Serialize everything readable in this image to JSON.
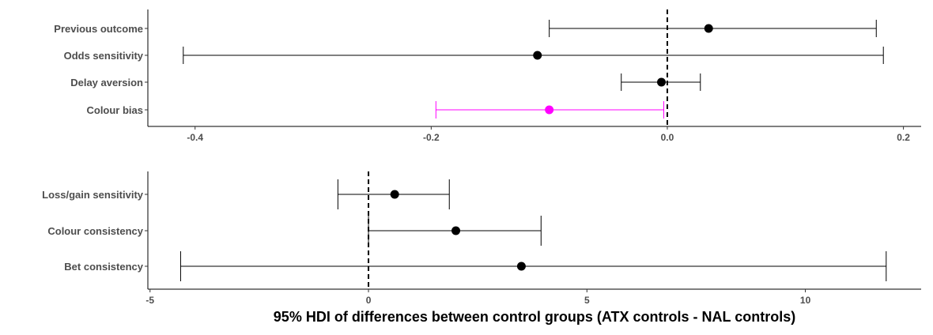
{
  "chart_data": [
    {
      "type": "interval",
      "categories": [
        "Previous outcome",
        "Odds sensitivity",
        "Delay aversion",
        "Colour bias"
      ],
      "estimates": [
        0.035,
        -0.11,
        -0.005,
        -0.1
      ],
      "lower": [
        -0.1,
        -0.41,
        -0.039,
        -0.196
      ],
      "upper": [
        0.177,
        0.183,
        0.028,
        -0.003
      ],
      "colors": [
        "#000000",
        "#000000",
        "#000000",
        "#ff00ff"
      ],
      "xlim": [
        -0.44,
        0.215
      ],
      "xticks": [
        -0.4,
        -0.2,
        0.0,
        0.2
      ],
      "xtick_labels": [
        "-0.4",
        "-0.2",
        "0.0",
        "0.2"
      ],
      "reference_line": 0.0
    },
    {
      "type": "interval",
      "categories": [
        "Loss/gain sensitivity",
        "Colour consistency",
        "Bet consistency"
      ],
      "estimates": [
        0.6,
        2.0,
        3.5
      ],
      "lower": [
        -0.7,
        0.0,
        -4.3
      ],
      "upper": [
        1.85,
        3.95,
        11.85
      ],
      "colors": [
        "#000000",
        "#000000",
        "#000000"
      ],
      "xlim": [
        -5.05,
        12.65
      ],
      "xticks": [
        -5,
        0,
        5,
        10
      ],
      "xtick_labels": [
        "-5",
        "0",
        "5",
        "10"
      ],
      "reference_line": 0
    }
  ],
  "xlabel": "95% HDI of differences between control groups (ATX controls - NAL controls)"
}
